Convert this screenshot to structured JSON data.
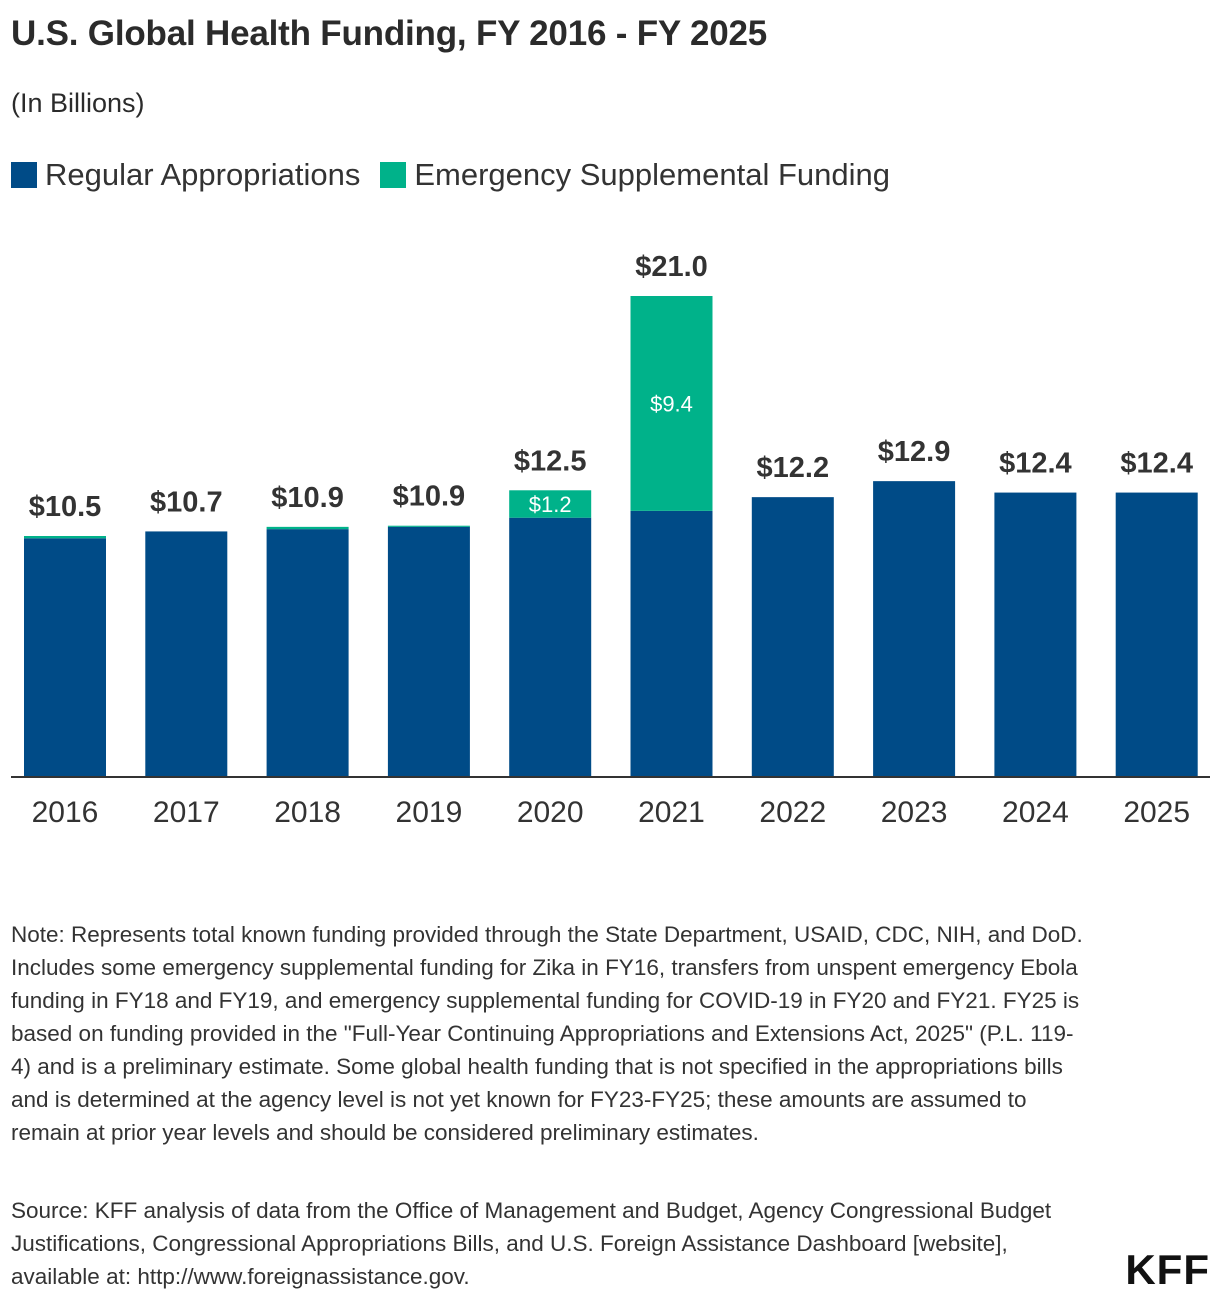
{
  "colors": {
    "regular": "#004b87",
    "emergency": "#00b28a",
    "axis": "#333333",
    "text": "#222222"
  },
  "chart_data": {
    "type": "bar",
    "stacked": true,
    "title": "U.S. Global Health Funding, FY 2016 - FY 2025",
    "subtitle": "(In Billions)",
    "categories": [
      "2016",
      "2017",
      "2018",
      "2019",
      "2020",
      "2021",
      "2022",
      "2023",
      "2024",
      "2025"
    ],
    "series": [
      {
        "name": "Regular Appropriations",
        "values": [
          10.4,
          10.7,
          10.8,
          10.9,
          11.3,
          11.6,
          12.2,
          12.9,
          12.4,
          12.4
        ]
      },
      {
        "name": "Emergency Supplemental Funding",
        "values": [
          0.1,
          0,
          0.1,
          0.05,
          1.2,
          9.4,
          0,
          0,
          0,
          0
        ],
        "labels": [
          "",
          "",
          "",
          "",
          "$1.2",
          "$9.4",
          "",
          "",
          "",
          ""
        ]
      }
    ],
    "totals": [
      "$10.5",
      "$10.7",
      "$10.9",
      "$10.9",
      "$12.5",
      "$21.0",
      "$12.2",
      "$12.9",
      "$12.4",
      "$12.4"
    ],
    "legend_position": "top-left",
    "ylim": [
      0,
      21.0
    ],
    "grid": false,
    "xlabel": "",
    "ylabel": ""
  },
  "note": "Note: Represents total known funding provided through the State Department, USAID, CDC, NIH, and DoD. Includes some emergency supplemental funding for Zika in FY16, transfers from unspent emergency Ebola funding in FY18 and FY19, and emergency supplemental funding for COVID-19 in FY20 and FY21. FY25 is based on funding provided in the \"Full-Year Continuing Appropriations and Extensions Act, 2025\" (P.L. 119-4) and is a preliminary estimate. Some global health funding that is not specified in the appropriations bills and is determined at the agency level is not yet known for FY23-FY25; these amounts are assumed to remain at prior year levels and should be considered preliminary estimates.",
  "source": "Source: KFF analysis of data from the Office of Management and Budget, Agency Congressional Budget Justifications, Congressional Appropriations Bills, and U.S. Foreign Assistance Dashboard [website], available at: http://www.foreignassistance.gov.",
  "logo": "KFF"
}
